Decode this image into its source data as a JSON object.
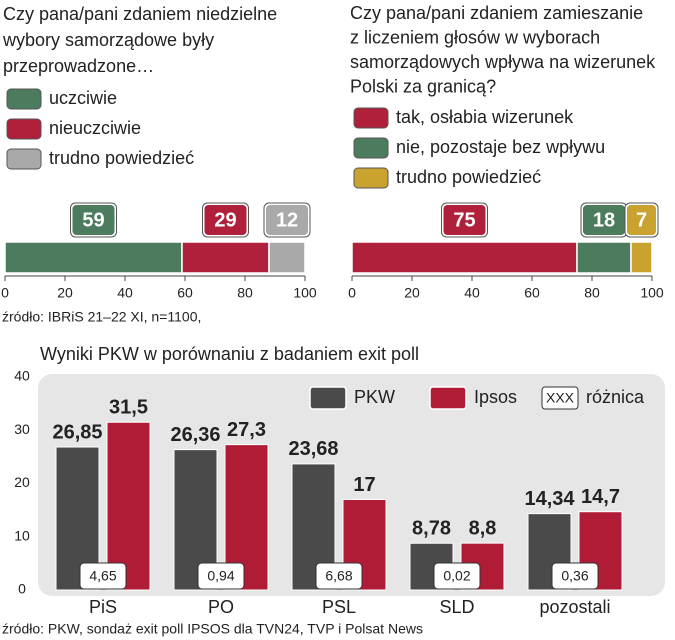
{
  "chart_data": [
    {
      "type": "stacked_bar",
      "title": [
        "Czy pana/pani zdaniem niedzielne",
        "wybory samorządowe były",
        "przeprowadzone…"
      ],
      "series": [
        {
          "name": "uczciwie",
          "color": "#4c7b5d",
          "values": [
            59
          ]
        },
        {
          "name": "nieuczciwie",
          "color": "#b0203a",
          "values": [
            29
          ]
        },
        {
          "name": "trudno powiedzieć",
          "color": "#a9a9a9",
          "values": [
            12
          ]
        }
      ],
      "xlim": [
        0,
        100
      ],
      "xticks": [
        0,
        20,
        40,
        60,
        80,
        100
      ],
      "source": "źródło: IBRiS 21–22 XI, n=1100,"
    },
    {
      "type": "stacked_bar",
      "title": [
        "Czy pana/pani zdaniem zamieszanie",
        "z liczeniem głosów w wyborach",
        "samorządowych wpływa na wizerunek",
        "Polski za granicą?"
      ],
      "series": [
        {
          "name": "tak, osłabia wizerunek",
          "color": "#b0203a",
          "values": [
            75
          ]
        },
        {
          "name": "nie, pozostaje bez wpływu",
          "color": "#4c7b5d",
          "values": [
            18
          ]
        },
        {
          "name": "trudno powiedzieć",
          "color": "#c9a22f",
          "values": [
            7
          ]
        }
      ],
      "xlim": [
        0,
        100
      ],
      "xticks": [
        0,
        20,
        40,
        60,
        80,
        100
      ]
    },
    {
      "type": "bar",
      "title": "Wyniki PKW w porównaniu z badaniem exit poll",
      "categories": [
        "PiS",
        "PO",
        "PSL",
        "SLD",
        "pozostali"
      ],
      "series": [
        {
          "name": "PKW",
          "color": "#4a4a4a",
          "values": [
            26.85,
            26.36,
            23.68,
            8.78,
            14.34
          ],
          "value_labels": [
            "26,85",
            "26,36",
            "23,68",
            "8,78",
            "14,34"
          ]
        },
        {
          "name": "Ipsos",
          "color": "#b01c36",
          "values": [
            31.5,
            27.3,
            17,
            8.8,
            14.7
          ],
          "value_labels": [
            "31,5",
            "27,3",
            "17",
            "8,8",
            "14,7"
          ]
        }
      ],
      "difference": {
        "name": "różnica",
        "sample": "XXX",
        "values": [
          4.65,
          0.94,
          6.68,
          0.02,
          0.36
        ],
        "value_labels": [
          "4,65",
          "0,94",
          "6,68",
          "0,02",
          "0,36"
        ]
      },
      "ylim": [
        0,
        40
      ],
      "yticks": [
        0,
        10,
        20,
        30,
        40
      ],
      "source": "źródło: PKW, sondaż exit poll IPSOS dla TVN24, TVP i Polsat News"
    }
  ]
}
